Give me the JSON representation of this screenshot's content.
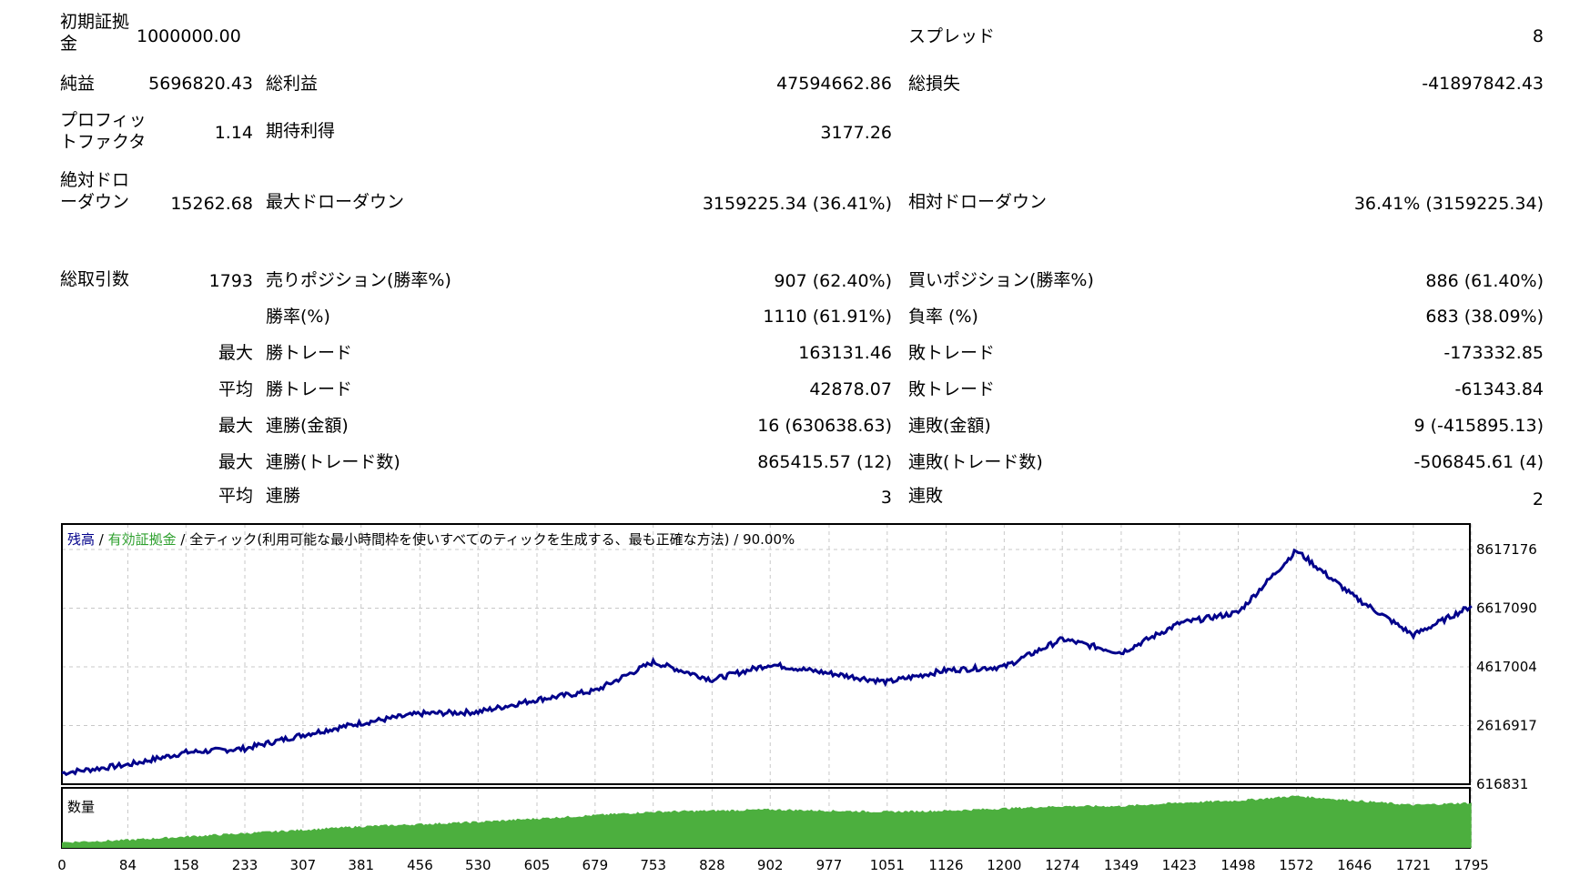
{
  "report": {
    "initial_deposit_label": "初期証拠金",
    "initial_deposit_value": "1000000.00",
    "spread_label": "スプレッド",
    "spread_value": "8",
    "net_profit_label": "純益",
    "net_profit_value": "5696820.43",
    "gross_profit_label": "総利益",
    "gross_profit_value": "47594662.86",
    "gross_loss_label": "総損失",
    "gross_loss_value": "-41897842.43",
    "profit_factor_label": "プロフィットファクタ",
    "profit_factor_value": "1.14",
    "expected_payoff_label": "期待利得",
    "expected_payoff_value": "3177.26",
    "abs_drawdown_label": "絶対ドローダウン",
    "abs_drawdown_value": "15262.68",
    "max_drawdown_label": "最大ドローダウン",
    "max_drawdown_value": "3159225.34 (36.41%)",
    "rel_drawdown_label": "相対ドローダウン",
    "rel_drawdown_value": "36.41% (3159225.34)",
    "total_trades_label": "総取引数",
    "total_trades_value": "1793",
    "short_positions_label": "売りポジション(勝率%)",
    "short_positions_value": "907 (62.40%)",
    "long_positions_label": "買いポジション(勝率%)",
    "long_positions_value": "886 (61.40%)",
    "win_rate_label": "勝率(%)",
    "win_rate_value": "1110 (61.91%)",
    "loss_rate_label": "負率 (%)",
    "loss_rate_value": "683 (38.09%)",
    "max_label": "最大",
    "avg_label": "平均",
    "largest_win_label": "勝トレード",
    "largest_win_value": "163131.46",
    "largest_loss_label": "敗トレード",
    "largest_loss_value": "-173332.85",
    "avg_win_label": "勝トレード",
    "avg_win_value": "42878.07",
    "avg_loss_label": "敗トレード",
    "avg_loss_value": "-61343.84",
    "max_consec_wins_amount_label": "連勝(金額)",
    "max_consec_wins_amount_value": "16 (630638.63)",
    "max_consec_losses_amount_label": "連敗(金額)",
    "max_consec_losses_amount_value": "9 (-415895.13)",
    "max_consec_wins_count_label": "連勝(トレード数)",
    "max_consec_wins_count_value": "865415.57 (12)",
    "max_consec_losses_count_label": "連敗(トレード数)",
    "max_consec_losses_count_value": "-506845.61 (4)",
    "avg_consec_wins_label": "連勝",
    "avg_consec_wins_value": "3",
    "avg_consec_losses_label": "連敗",
    "avg_consec_losses_value": "2"
  },
  "chart_header": {
    "balance_label": "残高",
    "sep1": " / ",
    "equity_label": "有効証拠金",
    "rest": " / 全ティック(利用可能な最小時間枠を使いすべてのティックを生成する、最も正確な方法) / 90.00%",
    "balance_color": "#00008b",
    "equity_color": "#2ea02e"
  },
  "volume_label": "数量",
  "colors": {
    "balance_line": "#00008b",
    "volume_fill": "#4caf3e",
    "grid": "#c8c8c8",
    "frame": "#000000"
  },
  "chart_data": {
    "type": "line",
    "series": [
      {
        "name": "残高",
        "x": [
          0,
          84,
          158,
          233,
          307,
          381,
          456,
          530,
          605,
          679,
          753,
          828,
          902,
          977,
          1051,
          1126,
          1200,
          1274,
          1349,
          1423,
          1498,
          1572,
          1646,
          1721,
          1795
        ],
        "values": [
          1000000,
          1280000,
          1700000,
          1830000,
          2300000,
          2700000,
          3020000,
          3080000,
          3500000,
          3800000,
          4780000,
          4180000,
          4700000,
          4400000,
          4100000,
          4500000,
          4620000,
          5560000,
          5100000,
          6100000,
          6470000,
          8580000,
          7000000,
          5700000,
          6690000
        ]
      }
    ],
    "volume_series": {
      "name": "数量",
      "values": [
        0.1,
        0.14,
        0.2,
        0.26,
        0.32,
        0.38,
        0.42,
        0.46,
        0.52,
        0.58,
        0.64,
        0.66,
        0.68,
        0.66,
        0.64,
        0.66,
        0.7,
        0.74,
        0.74,
        0.8,
        0.84,
        0.92,
        0.84,
        0.76,
        0.8
      ]
    },
    "y_ticks": [
      8617176,
      6617090,
      4617004,
      2616917,
      616831
    ],
    "x_ticks": [
      0,
      84,
      158,
      233,
      307,
      381,
      456,
      530,
      605,
      679,
      753,
      828,
      902,
      977,
      1051,
      1126,
      1200,
      1274,
      1349,
      1423,
      1498,
      1572,
      1646,
      1721,
      1795
    ],
    "ylim": [
      616831,
      8617176
    ],
    "xlim": [
      0,
      1793
    ],
    "grid": true
  }
}
